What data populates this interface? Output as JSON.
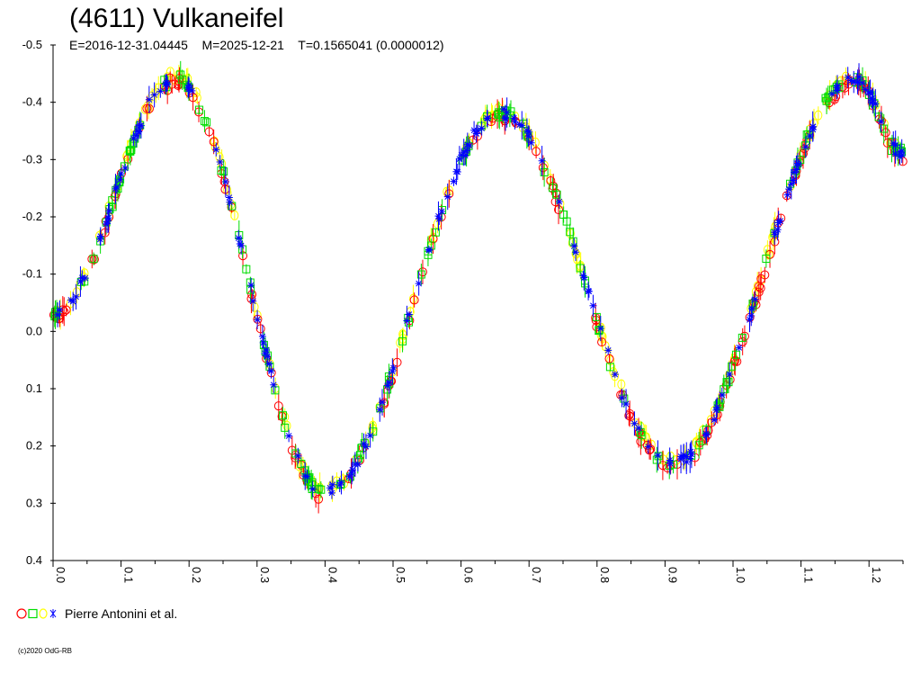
{
  "chart_data": {
    "type": "scatter",
    "title": "(4611) Vulkaneifel",
    "subtitle": "E=2016-12-31.04445    M=2025-12-21    T=0.1565041 (0.0000012)",
    "xlabel": "",
    "ylabel": "",
    "xlim": [
      0.0,
      1.25
    ],
    "ylim": [
      -0.5,
      0.4
    ],
    "y_inverted": true,
    "grid": false,
    "xticks": [
      "0.0",
      "0.1",
      "0.2",
      "0.3",
      "0.4",
      "0.5",
      "0.6",
      "0.7",
      "0.8",
      "0.9",
      "1.0",
      "1.1",
      "1.2"
    ],
    "yticks": [
      "-0.5",
      "-0.4",
      "-0.3",
      "-0.2",
      "-0.1",
      "0.0",
      "0.1",
      "0.2",
      "0.3",
      "0.4"
    ],
    "lightcurve_model": {
      "description_points": [
        {
          "phase": 0.0,
          "mag": -0.03
        },
        {
          "phase": 0.18,
          "mag": -0.44
        },
        {
          "phase": 0.4,
          "mag": 0.28
        },
        {
          "phase": 0.66,
          "mag": -0.38
        },
        {
          "phase": 0.91,
          "mag": 0.23
        },
        {
          "phase": 1.18,
          "mag": -0.44
        },
        {
          "phase": 1.25,
          "mag": -0.31
        }
      ]
    },
    "series": [
      {
        "name": "",
        "marker": "circle",
        "color": "#ff0000"
      },
      {
        "name": "",
        "marker": "square",
        "color": "#00dd00"
      },
      {
        "name": "",
        "marker": "diamond",
        "color": "#ffff00"
      },
      {
        "name": "",
        "marker": "star",
        "color": "#0000ff"
      }
    ],
    "legend": {
      "position": "bottom-left",
      "label": "Pierre Antonini et al."
    },
    "colors": {
      "red": "#ff0000",
      "green": "#00dd00",
      "yellow": "#ffff00",
      "blue": "#0000ff"
    }
  },
  "footer": {
    "copyright": "(c)2020 OdG-RB"
  }
}
